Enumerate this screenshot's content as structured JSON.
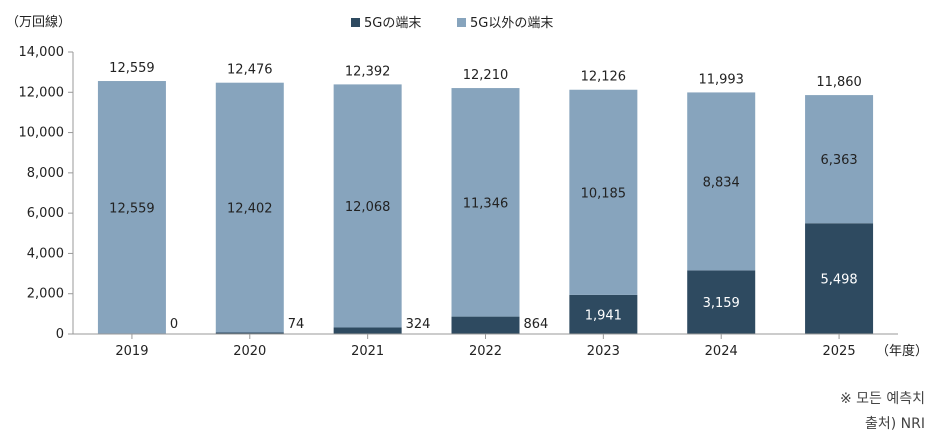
{
  "chart_data": {
    "type": "bar",
    "stacked": true,
    "unit_label": "（万回線）",
    "xaxis_unit": "（年度）",
    "categories": [
      "2019",
      "2020",
      "2021",
      "2022",
      "2023",
      "2024",
      "2025"
    ],
    "series": [
      {
        "name": "5Gの端末",
        "color": "#2e4a60",
        "values": [
          0,
          74,
          324,
          864,
          1941,
          3159,
          5498
        ]
      },
      {
        "name": "5G以外の端末",
        "color": "#87a4bd",
        "values": [
          12559,
          12402,
          12068,
          11346,
          10185,
          8834,
          6363
        ]
      }
    ],
    "totals": [
      12559,
      12476,
      12392,
      12210,
      12126,
      11993,
      11860
    ],
    "ylim": [
      0,
      14000
    ],
    "yticks": [
      0,
      2000,
      4000,
      6000,
      8000,
      10000,
      12000,
      14000
    ],
    "grid": false,
    "legend": "top-center"
  },
  "notes": {
    "forecast": "※ 모든 예측치",
    "source": "출처) NRI"
  },
  "colors": {
    "axis": "#999999"
  }
}
